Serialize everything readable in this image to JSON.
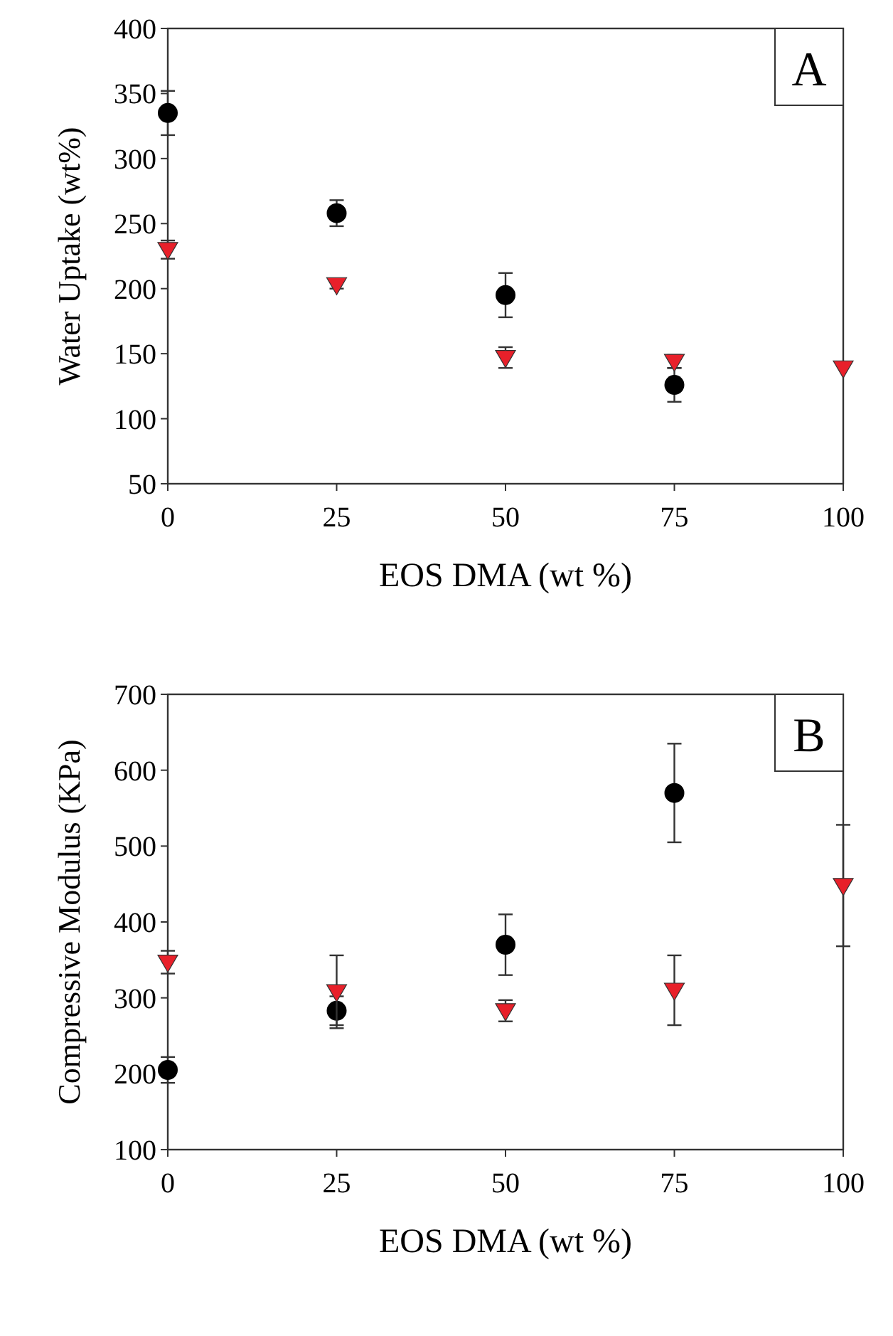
{
  "chart_data": [
    {
      "type": "scatter",
      "xlabel": "EOS DMA (wt %)",
      "ylabel": "Water Uptake (wt%)",
      "annotations": [
        "A"
      ],
      "x": [
        0,
        25,
        50,
        75,
        100
      ],
      "xlim": [
        0,
        100
      ],
      "xticks": [
        0,
        25,
        50,
        75,
        100
      ],
      "ylim": [
        50,
        400
      ],
      "yticks": [
        50,
        100,
        150,
        200,
        250,
        300,
        350,
        400
      ],
      "grid": false,
      "series": [
        {
          "color": "#000000",
          "marker": "circle",
          "values": [
            335,
            258,
            195,
            126,
            null
          ],
          "errors": [
            17,
            10,
            17,
            13,
            null
          ]
        },
        {
          "color": "#e8202a",
          "marker": "triangle",
          "values": [
            230,
            203,
            147,
            144,
            139
          ],
          "errors": [
            7,
            3,
            8,
            5,
            null
          ]
        }
      ]
    },
    {
      "type": "scatter",
      "xlabel": "EOS DMA (wt %)",
      "ylabel": "Compressive Modulus (KPa)",
      "annotations": [
        "B"
      ],
      "x": [
        0,
        25,
        50,
        75,
        100
      ],
      "xlim": [
        0,
        100
      ],
      "xticks": [
        0,
        25,
        50,
        75,
        100
      ],
      "ylim": [
        100,
        700
      ],
      "yticks": [
        100,
        200,
        300,
        400,
        500,
        600,
        700
      ],
      "grid": false,
      "series": [
        {
          "color": "#000000",
          "marker": "circle",
          "values": [
            205,
            283,
            370,
            570,
            null
          ],
          "errors": [
            17,
            19,
            40,
            65,
            null
          ]
        },
        {
          "color": "#e8202a",
          "marker": "triangle",
          "values": [
            347,
            308,
            283,
            310,
            448
          ],
          "errors": [
            15,
            48,
            14,
            46,
            80
          ]
        }
      ]
    }
  ]
}
